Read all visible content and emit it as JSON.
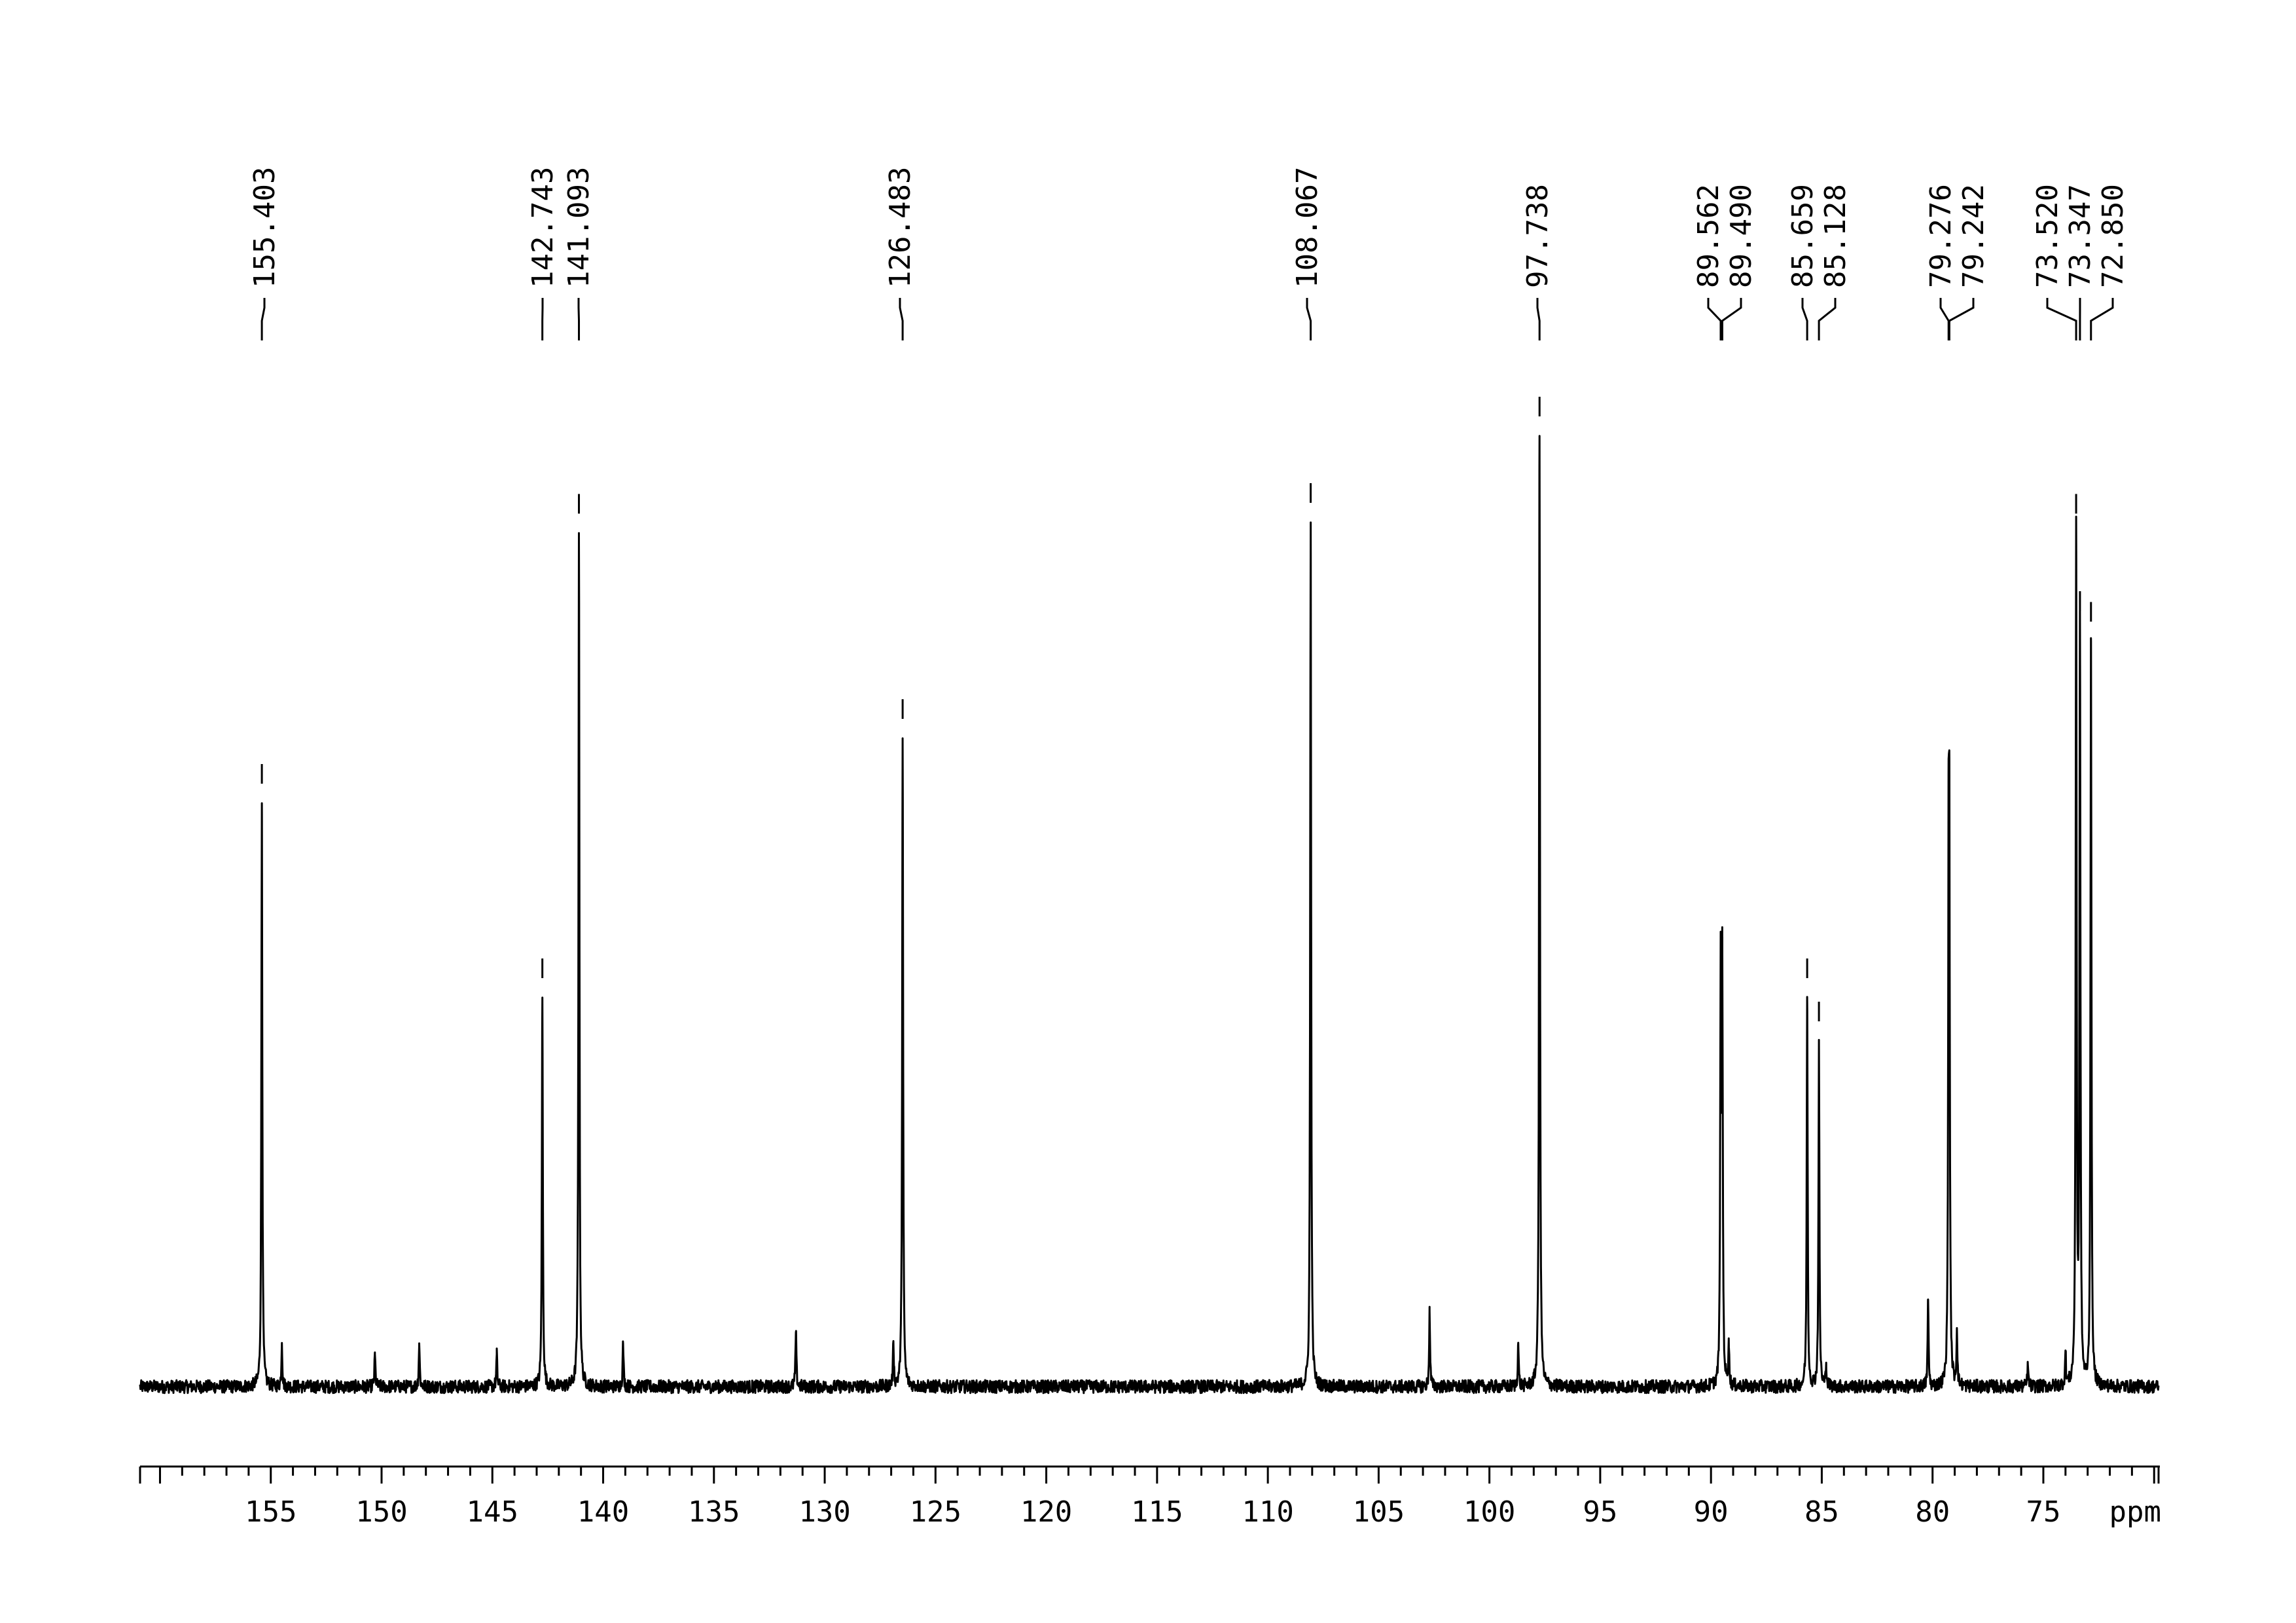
{
  "chart_data": {
    "type": "line",
    "title": "",
    "xlabel": "",
    "ylabel": "",
    "x_unit_label": "ppm",
    "x_reversed": true,
    "xlim": [
      160.9,
      69.8
    ],
    "grid": false,
    "legend": "none",
    "line_color": "#000000",
    "x_ticks": [
      155,
      150,
      145,
      140,
      135,
      130,
      125,
      120,
      115,
      110,
      105,
      100,
      95,
      90,
      85,
      80,
      75
    ],
    "peak_labels": [
      "155.403",
      "142.743",
      "141.093",
      "126.483",
      "108.067",
      "97.738",
      "89.562",
      "89.490",
      "85.659",
      "85.128",
      "79.276",
      "79.242",
      "73.520",
      "73.347",
      "72.850"
    ],
    "peaks": [
      {
        "ppm": 155.403,
        "height": 0.54
      },
      {
        "ppm": 142.743,
        "height": 0.36
      },
      {
        "ppm": 141.093,
        "height": 0.79
      },
      {
        "ppm": 126.483,
        "height": 0.6
      },
      {
        "ppm": 108.067,
        "height": 0.8
      },
      {
        "ppm": 97.738,
        "height": 0.88
      },
      {
        "ppm": 89.562,
        "height": 0.38
      },
      {
        "ppm": 89.49,
        "height": 0.38
      },
      {
        "ppm": 85.659,
        "height": 0.36
      },
      {
        "ppm": 85.128,
        "height": 0.32
      },
      {
        "ppm": 79.276,
        "height": 0.43
      },
      {
        "ppm": 79.242,
        "height": 0.43
      },
      {
        "ppm": 73.52,
        "height": 0.79
      },
      {
        "ppm": 73.347,
        "height": 0.7
      },
      {
        "ppm": 72.85,
        "height": 0.69
      }
    ],
    "minor_peaks": [
      {
        "ppm": 154.5,
        "height": 0.04
      },
      {
        "ppm": 150.3,
        "height": 0.03
      },
      {
        "ppm": 148.3,
        "height": 0.04
      },
      {
        "ppm": 144.8,
        "height": 0.03
      },
      {
        "ppm": 139.1,
        "height": 0.04
      },
      {
        "ppm": 131.3,
        "height": 0.05
      },
      {
        "ppm": 126.9,
        "height": 0.04
      },
      {
        "ppm": 102.7,
        "height": 0.07
      },
      {
        "ppm": 98.7,
        "height": 0.04
      },
      {
        "ppm": 89.2,
        "height": 0.04
      },
      {
        "ppm": 84.8,
        "height": 0.02
      },
      {
        "ppm": 80.2,
        "height": 0.08
      },
      {
        "ppm": 78.9,
        "height": 0.05
      },
      {
        "ppm": 75.7,
        "height": 0.02
      },
      {
        "ppm": 74.0,
        "height": 0.03
      }
    ]
  }
}
